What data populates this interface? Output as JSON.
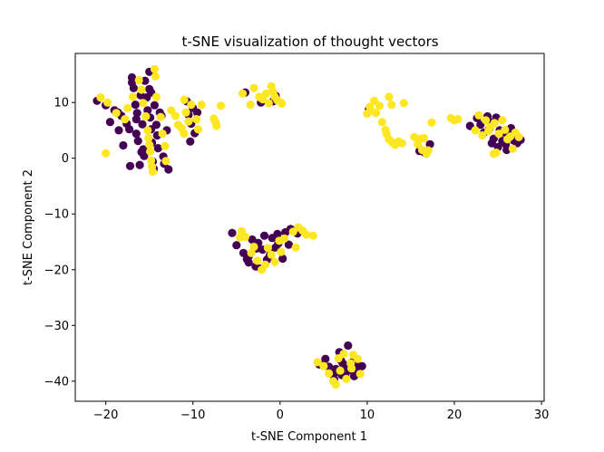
{
  "chart_data": {
    "type": "scatter",
    "title": "t-SNE visualization of thought vectors",
    "xlabel": "t-SNE Component 1",
    "ylabel": "t-SNE Component 2",
    "xlim": [
      -23.5,
      30.3
    ],
    "ylim": [
      -43.6,
      18.8
    ],
    "xticks": [
      -20,
      -10,
      0,
      10,
      20,
      30
    ],
    "yticks": [
      10,
      0,
      -10,
      -20,
      -30,
      -40
    ],
    "xtick_labels": [
      "−20",
      "−10",
      "0",
      "10",
      "20",
      "30"
    ],
    "ytick_labels": [
      "10",
      "0",
      "−10",
      "−20",
      "−30",
      "−40"
    ],
    "grid": false,
    "legend": "none",
    "series": [
      {
        "color": "#440154",
        "points": [
          [
            -21,
            10.3
          ],
          [
            -20,
            9.5
          ],
          [
            -19.5,
            6.5
          ],
          [
            -19,
            8.6
          ],
          [
            -18.6,
            8.2
          ],
          [
            -18.5,
            5.0
          ],
          [
            -18.2,
            7.6
          ],
          [
            -18,
            2.3
          ],
          [
            -17.6,
            6.2
          ],
          [
            -17.3,
            5.2
          ],
          [
            -17,
            14.5
          ],
          [
            -17,
            13.6
          ],
          [
            -16.8,
            12.6
          ],
          [
            -16.6,
            9.6
          ],
          [
            -16.5,
            7.0
          ],
          [
            -16.5,
            4.4
          ],
          [
            -16.3,
            3.1
          ],
          [
            -16.1,
            -1.2
          ],
          [
            -16.4,
            8.1
          ],
          [
            -16.0,
            11.3
          ],
          [
            -15.8,
            6.1
          ],
          [
            -15.7,
            1.6
          ],
          [
            -15.6,
            0.4
          ],
          [
            -15.5,
            13.9
          ],
          [
            -15.3,
            10.9
          ],
          [
            -15.2,
            8.6
          ],
          [
            -15.0,
            15.5
          ],
          [
            -15.0,
            12.4
          ],
          [
            -14.9,
            7.3
          ],
          [
            -14.8,
            5.2
          ],
          [
            -14.7,
            2.8
          ],
          [
            -14.6,
            -0.6
          ],
          [
            -14.5,
            -1.9
          ],
          [
            -14.4,
            9.5
          ],
          [
            -14.2,
            6.0
          ],
          [
            -14.1,
            4.1
          ],
          [
            -14.0,
            1.8
          ],
          [
            -13.8,
            8.2
          ],
          [
            -13.6,
            7.6
          ],
          [
            -13.4,
            0.3
          ],
          [
            -13.3,
            -1.0
          ],
          [
            -13.0,
            5.0
          ],
          [
            -12.8,
            -2.0
          ],
          [
            -17.2,
            -1.4
          ],
          [
            -15.9,
            1.1
          ],
          [
            -14.8,
            11.8
          ],
          [
            -10.7,
            10.2
          ],
          [
            -10.5,
            7.8
          ],
          [
            -10.2,
            6.2
          ],
          [
            -10.0,
            9.0
          ],
          [
            -9.8,
            4.5
          ],
          [
            -10.3,
            3.0
          ],
          [
            -9.5,
            8.2
          ],
          [
            -4.0,
            11.8
          ],
          [
            -2.2,
            10.0
          ],
          [
            -0.5,
            11.2
          ],
          [
            -0.8,
            10.2
          ],
          [
            -5.5,
            -13.4
          ],
          [
            -5.0,
            -15.6
          ],
          [
            -4.2,
            -17.0
          ],
          [
            -3.8,
            -18.1
          ],
          [
            -3.6,
            -18.7
          ],
          [
            -3.2,
            -14.6
          ],
          [
            -2.8,
            -19.4
          ],
          [
            -2.5,
            -15.2
          ],
          [
            -2.2,
            -19.8
          ],
          [
            -2.0,
            -16.4
          ],
          [
            -1.8,
            -13.9
          ],
          [
            -1.5,
            -18.2
          ],
          [
            -1.2,
            -17.5
          ],
          [
            -0.9,
            -14.3
          ],
          [
            -0.5,
            -16.0
          ],
          [
            -0.3,
            -13.6
          ],
          [
            0.3,
            -18.0
          ],
          [
            0.6,
            -13.3
          ],
          [
            1.0,
            -15.5
          ],
          [
            1.2,
            -12.7
          ],
          [
            2.0,
            -13.5
          ],
          [
            -3.6,
            -17.6
          ],
          [
            -2.7,
            -16.2
          ],
          [
            -1.1,
            -16.6
          ],
          [
            -0.2,
            -15.3
          ],
          [
            4.5,
            -37.0
          ],
          [
            5.2,
            -36.0
          ],
          [
            5.6,
            -37.4
          ],
          [
            6.0,
            -38.6
          ],
          [
            6.2,
            -39.6
          ],
          [
            6.4,
            -37.8
          ],
          [
            6.8,
            -34.8
          ],
          [
            7.0,
            -36.3
          ],
          [
            7.1,
            -38.9
          ],
          [
            7.4,
            -37.5
          ],
          [
            7.5,
            -39.0
          ],
          [
            7.8,
            -33.6
          ],
          [
            8.0,
            -38.0
          ],
          [
            8.3,
            -36.6
          ],
          [
            8.5,
            -39.1
          ],
          [
            8.7,
            -37.1
          ],
          [
            9.0,
            -38.2
          ],
          [
            9.4,
            -37.3
          ],
          [
            6.5,
            -38.3
          ],
          [
            7.2,
            -36.8
          ],
          [
            10.2,
            8.8
          ],
          [
            16.0,
            1.3
          ],
          [
            17.2,
            2.5
          ],
          [
            16.6,
            1.0
          ],
          [
            21.8,
            5.8
          ],
          [
            22.6,
            7.2
          ],
          [
            23.0,
            6.0
          ],
          [
            23.4,
            4.6
          ],
          [
            23.8,
            7.5
          ],
          [
            24.0,
            5.3
          ],
          [
            24.3,
            2.7
          ],
          [
            24.5,
            3.5
          ],
          [
            24.8,
            7.3
          ],
          [
            25.0,
            2.0
          ],
          [
            25.2,
            5.0
          ],
          [
            25.5,
            3.1
          ],
          [
            25.9,
            2.5
          ],
          [
            26.2,
            4.2
          ],
          [
            26.5,
            5.4
          ],
          [
            26.8,
            3.2
          ],
          [
            27.2,
            2.7
          ],
          [
            27.6,
            3.3
          ],
          [
            24.2,
            6.4
          ],
          [
            25.7,
            4.6
          ],
          [
            26.0,
            1.5
          ]
        ]
      },
      {
        "color": "#fde725",
        "points": [
          [
            -20.0,
            0.9
          ],
          [
            -20.6,
            10.9
          ],
          [
            -19.8,
            10.0
          ],
          [
            -18.8,
            8.1
          ],
          [
            -17.8,
            7.0
          ],
          [
            -17.5,
            9.0
          ],
          [
            -16.9,
            11.0
          ],
          [
            -16.2,
            14.0
          ],
          [
            -15.9,
            12.3
          ],
          [
            -15.7,
            9.9
          ],
          [
            -15.4,
            7.5
          ],
          [
            -15.2,
            5.0
          ],
          [
            -15.1,
            3.6
          ],
          [
            -15.0,
            2.4
          ],
          [
            -14.9,
            1.2
          ],
          [
            -14.8,
            -0.4
          ],
          [
            -14.7,
            -1.5
          ],
          [
            -14.6,
            -2.4
          ],
          [
            -14.4,
            16.0
          ],
          [
            -14.3,
            14.7
          ],
          [
            -14.2,
            11.0
          ],
          [
            -13.7,
            7.4
          ],
          [
            -13.5,
            4.4
          ],
          [
            -13.2,
            2.2
          ],
          [
            -13.1,
            -0.5
          ],
          [
            -12.5,
            8.6
          ],
          [
            -12.0,
            7.6
          ],
          [
            -11.7,
            6.0
          ],
          [
            -11.3,
            5.4
          ],
          [
            -11.0,
            10.5
          ],
          [
            -11.0,
            4.4
          ],
          [
            -10.8,
            8.2
          ],
          [
            -10.5,
            6.6
          ],
          [
            -10.2,
            9.6
          ],
          [
            -9.6,
            7.0
          ],
          [
            -9.4,
            5.2
          ],
          [
            -9.0,
            9.6
          ],
          [
            -7.6,
            7.1
          ],
          [
            -7.4,
            6.5
          ],
          [
            -7.3,
            5.8
          ],
          [
            -6.8,
            9.4
          ],
          [
            -4.3,
            11.6
          ],
          [
            -3.4,
            9.6
          ],
          [
            -3.0,
            12.6
          ],
          [
            -2.4,
            11.0
          ],
          [
            -2.0,
            10.6
          ],
          [
            -1.6,
            11.6
          ],
          [
            -1.3,
            9.9
          ],
          [
            -1.0,
            12.9
          ],
          [
            -0.8,
            11.9
          ],
          [
            -0.6,
            11.0
          ],
          [
            -0.3,
            10.4
          ],
          [
            0.1,
            10.0
          ],
          [
            0.2,
            9.8
          ],
          [
            -4.4,
            -13.1
          ],
          [
            -4.0,
            -14.1
          ],
          [
            -3.3,
            -17.0
          ],
          [
            -2.6,
            -18.4
          ],
          [
            -2.1,
            -20.0
          ],
          [
            -1.7,
            -19.1
          ],
          [
            -1.4,
            -16.1
          ],
          [
            -1.0,
            -17.3
          ],
          [
            -0.6,
            -18.6
          ],
          [
            -0.1,
            -14.8
          ],
          [
            0.1,
            -16.8
          ],
          [
            0.5,
            -14.4
          ],
          [
            1.5,
            -13.2
          ],
          [
            1.8,
            -16.0
          ],
          [
            2.1,
            -12.4
          ],
          [
            2.6,
            -13.0
          ],
          [
            3.0,
            -13.7
          ],
          [
            3.8,
            -13.9
          ],
          [
            -4.6,
            -14.2
          ],
          [
            -3.0,
            -15.9
          ],
          [
            4.3,
            -36.6
          ],
          [
            5.0,
            -37.3
          ],
          [
            5.6,
            -38.6
          ],
          [
            6.1,
            -40.0
          ],
          [
            6.4,
            -40.6
          ],
          [
            6.7,
            -35.9
          ],
          [
            7.3,
            -35.1
          ],
          [
            7.6,
            -39.6
          ],
          [
            8.1,
            -36.8
          ],
          [
            8.4,
            -35.3
          ],
          [
            8.9,
            -36.0
          ],
          [
            9.2,
            -38.7
          ],
          [
            8.2,
            -37.7
          ],
          [
            6.9,
            -38.1
          ],
          [
            10.0,
            8.0
          ],
          [
            10.3,
            9.2
          ],
          [
            10.5,
            8.5
          ],
          [
            10.8,
            10.3
          ],
          [
            11.0,
            8.1
          ],
          [
            11.4,
            9.4
          ],
          [
            11.7,
            6.5
          ],
          [
            12.1,
            5.1
          ],
          [
            12.2,
            4.4
          ],
          [
            12.5,
            11.0
          ],
          [
            12.8,
            9.6
          ],
          [
            12.5,
            3.4
          ],
          [
            12.9,
            2.8
          ],
          [
            13.2,
            2.4
          ],
          [
            13.6,
            3.0
          ],
          [
            14.0,
            2.7
          ],
          [
            14.2,
            9.9
          ],
          [
            15.4,
            3.8
          ],
          [
            15.8,
            2.5
          ],
          [
            16.0,
            3.5
          ],
          [
            16.3,
            1.5
          ],
          [
            16.5,
            3.6
          ],
          [
            16.8,
            0.8
          ],
          [
            17.0,
            1.4
          ],
          [
            17.4,
            6.4
          ],
          [
            19.6,
            7.2
          ],
          [
            20.0,
            6.8
          ],
          [
            20.4,
            7.0
          ],
          [
            22.4,
            5.0
          ],
          [
            22.8,
            7.7
          ],
          [
            23.2,
            4.1
          ],
          [
            23.6,
            6.8
          ],
          [
            24.1,
            5.6
          ],
          [
            24.6,
            6.3
          ],
          [
            24.8,
            1.0
          ],
          [
            25.1,
            4.4
          ],
          [
            25.5,
            6.8
          ],
          [
            25.8,
            5.1
          ],
          [
            26.1,
            3.4
          ],
          [
            26.4,
            3.9
          ],
          [
            26.7,
            1.7
          ],
          [
            27.0,
            4.6
          ],
          [
            27.4,
            3.8
          ],
          [
            23.9,
            4.9
          ],
          [
            24.5,
            0.8
          ]
        ]
      }
    ]
  }
}
